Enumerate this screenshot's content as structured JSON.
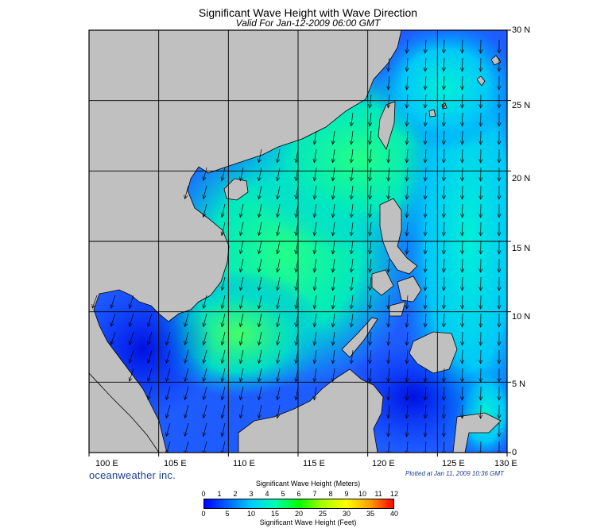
{
  "title": "Significant Wave Height with Wave Direction",
  "subtitle": "Valid For Jan-12-2009 06:00 GMT",
  "map": {
    "lon_range": [
      100,
      130
    ],
    "lat_range": [
      0,
      30
    ],
    "lon_labels": [
      "100 E",
      "105 E",
      "110 E",
      "115 E",
      "120 E",
      "125 E",
      "130 E"
    ],
    "lat_labels": [
      "0",
      "5 N",
      "10 N",
      "15 N",
      "20 N",
      "25 N",
      "30 N"
    ],
    "grid": true,
    "land_color": "#c0c0c0",
    "ocean_base_color": "#0033ff",
    "arrow_color": "#000000",
    "arrow_direction": "toward south-southwest"
  },
  "branding": {
    "logo_text": "oceanweather inc.",
    "plotted_text": "Plotted at Jan 11, 2009 10:36 GMT"
  },
  "colorbar": {
    "title_top": "Significant Wave Height (Meters)",
    "title_bottom": "Significant Wave Height (Feet)",
    "meters": [
      "0",
      "1",
      "2",
      "3",
      "4",
      "5",
      "6",
      "7",
      "8",
      "9",
      "10",
      "11",
      "12"
    ],
    "feet": [
      "0",
      "5",
      "10",
      "15",
      "20",
      "25",
      "30",
      "35",
      "40"
    ],
    "gradient": [
      "#0000ff",
      "#0066ff",
      "#00ccff",
      "#00ffb0",
      "#00ff00",
      "#a8ff00",
      "#ffff00",
      "#ffa000",
      "#ff0000"
    ]
  }
}
